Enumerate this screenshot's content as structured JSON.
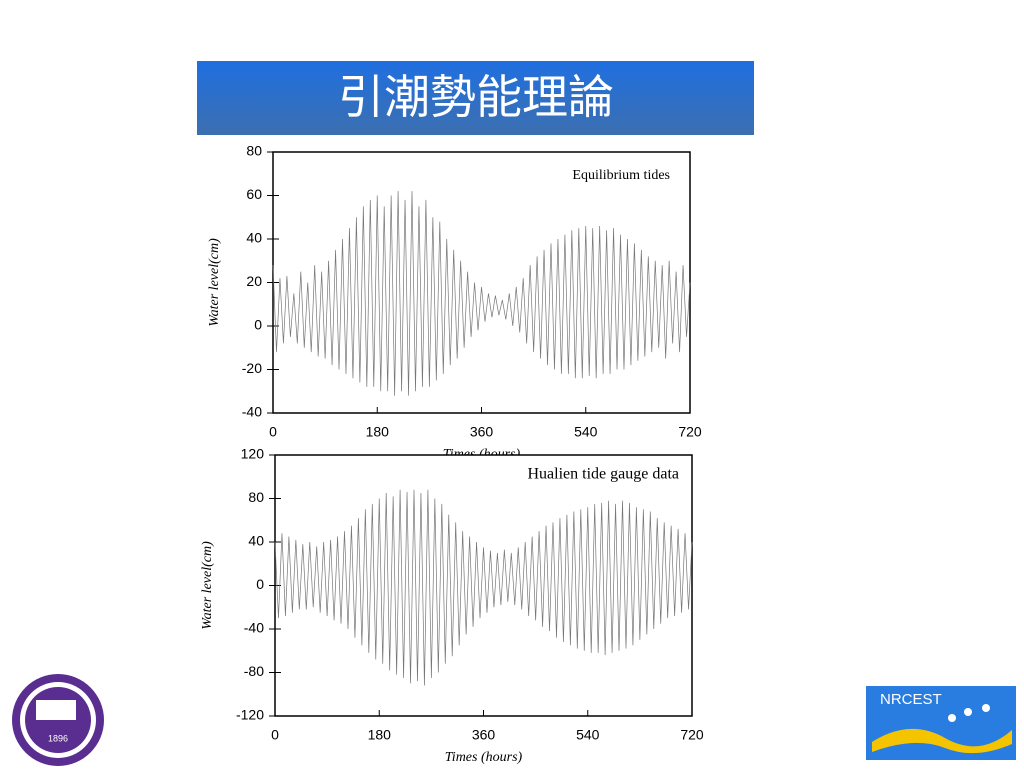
{
  "slide": {
    "title": "引潮勢能理論",
    "logos": {
      "left": "1896",
      "right": "NRCEST"
    }
  },
  "chart_data": [
    {
      "type": "line",
      "annotation": "Equilibrium tides",
      "x_label": "Times (hours)",
      "y_label": "Water level(cm)",
      "color": "#777777",
      "x": [
        0,
        6,
        12,
        18,
        24,
        30,
        36,
        42,
        48,
        54,
        60,
        66,
        72,
        78,
        84,
        90,
        96,
        102,
        108,
        114,
        120,
        126,
        132,
        138,
        144,
        150,
        156,
        162,
        168,
        174,
        180,
        186,
        192,
        198,
        204,
        210,
        216,
        222,
        228,
        234,
        240,
        246,
        252,
        258,
        264,
        270,
        276,
        282,
        288,
        294,
        300,
        306,
        312,
        318,
        324,
        330,
        336,
        342,
        348,
        354,
        360,
        366,
        372,
        378,
        384,
        390,
        396,
        402,
        408,
        414,
        420,
        426,
        432,
        438,
        444,
        450,
        456,
        462,
        468,
        474,
        480,
        486,
        492,
        498,
        504,
        510,
        516,
        522,
        528,
        534,
        540,
        546,
        552,
        558,
        564,
        570,
        576,
        582,
        588,
        594,
        600,
        606,
        612,
        618,
        624,
        630,
        636,
        642,
        648,
        654,
        660,
        666,
        672,
        678,
        684,
        690,
        696,
        702,
        708,
        714,
        720
      ],
      "values": [
        28,
        -12,
        22,
        -8,
        23,
        -5,
        15,
        -8,
        25,
        -10,
        20,
        -12,
        28,
        -14,
        25,
        -15,
        30,
        -18,
        35,
        -20,
        40,
        -22,
        45,
        -24,
        50,
        -26,
        55,
        -28,
        58,
        -28,
        60,
        -30,
        55,
        -30,
        60,
        -32,
        62,
        -30,
        58,
        -32,
        62,
        -30,
        55,
        -28,
        58,
        -28,
        50,
        -25,
        48,
        -22,
        40,
        -18,
        35,
        -15,
        30,
        -10,
        25,
        -5,
        20,
        -2,
        18,
        2,
        15,
        4,
        14,
        5,
        12,
        3,
        15,
        0,
        18,
        -3,
        22,
        -8,
        28,
        -12,
        32,
        -15,
        35,
        -18,
        38,
        -20,
        40,
        -22,
        42,
        -22,
        44,
        -24,
        45,
        -24,
        46,
        -23,
        45,
        -24,
        46,
        -22,
        44,
        -22,
        45,
        -20,
        42,
        -20,
        40,
        -18,
        38,
        -16,
        35,
        -14,
        32,
        -12,
        30,
        -10,
        28,
        -15,
        30,
        -8,
        25,
        -12,
        28,
        -5,
        20
      ],
      "xlim": [
        0,
        720
      ],
      "xticks": [
        0,
        180,
        360,
        540,
        720
      ],
      "ylim": [
        -40,
        80
      ],
      "yticks": [
        -40,
        -20,
        0,
        20,
        40,
        60,
        80
      ]
    },
    {
      "type": "line",
      "annotation": "Hualien tide gauge data",
      "x_label": "Times (hours)",
      "y_label": "Water level(cm)",
      "color": "#777777",
      "x": [
        0,
        6,
        12,
        18,
        24,
        30,
        36,
        42,
        48,
        54,
        60,
        66,
        72,
        78,
        84,
        90,
        96,
        102,
        108,
        114,
        120,
        126,
        132,
        138,
        144,
        150,
        156,
        162,
        168,
        174,
        180,
        186,
        192,
        198,
        204,
        210,
        216,
        222,
        228,
        234,
        240,
        246,
        252,
        258,
        264,
        270,
        276,
        282,
        288,
        294,
        300,
        306,
        312,
        318,
        324,
        330,
        336,
        342,
        348,
        354,
        360,
        366,
        372,
        378,
        384,
        390,
        396,
        402,
        408,
        414,
        420,
        426,
        432,
        438,
        444,
        450,
        456,
        462,
        468,
        474,
        480,
        486,
        492,
        498,
        504,
        510,
        516,
        522,
        528,
        534,
        540,
        546,
        552,
        558,
        564,
        570,
        576,
        582,
        588,
        594,
        600,
        606,
        612,
        618,
        624,
        630,
        636,
        642,
        648,
        654,
        660,
        666,
        672,
        678,
        684,
        690,
        696,
        702,
        708,
        714,
        720
      ],
      "values": [
        40,
        -30,
        48,
        -28,
        45,
        -25,
        42,
        -22,
        38,
        -22,
        40,
        -20,
        36,
        -25,
        40,
        -28,
        42,
        -32,
        45,
        -35,
        50,
        -40,
        55,
        -48,
        62,
        -55,
        70,
        -62,
        75,
        -68,
        80,
        -72,
        85,
        -78,
        82,
        -82,
        88,
        -85,
        86,
        -90,
        88,
        -88,
        85,
        -92,
        88,
        -85,
        80,
        -80,
        75,
        -72,
        65,
        -65,
        58,
        -55,
        50,
        -45,
        45,
        -38,
        40,
        -30,
        35,
        -25,
        32,
        -20,
        30,
        -18,
        33,
        -15,
        30,
        -18,
        35,
        -22,
        40,
        -28,
        45,
        -32,
        50,
        -38,
        55,
        -42,
        58,
        -48,
        62,
        -52,
        65,
        -55,
        68,
        -58,
        70,
        -60,
        72,
        -62,
        75,
        -62,
        76,
        -64,
        78,
        -62,
        75,
        -60,
        78,
        -58,
        76,
        -55,
        72,
        -50,
        70,
        -45,
        68,
        -40,
        62,
        -35,
        58,
        -30,
        55,
        -28,
        52,
        -25,
        48,
        -22,
        40
      ],
      "xlim": [
        0,
        720
      ],
      "xticks": [
        0,
        180,
        360,
        540,
        720
      ],
      "ylim": [
        -120,
        120
      ],
      "yticks": [
        -120,
        -80,
        -40,
        0,
        40,
        80,
        120
      ]
    }
  ]
}
